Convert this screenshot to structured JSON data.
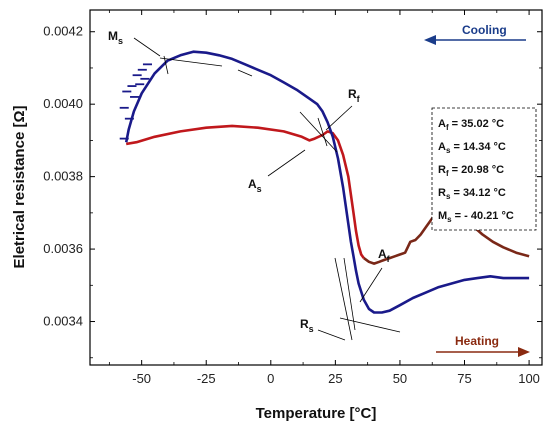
{
  "chart_data": {
    "type": "line",
    "xlabel": "Temperature [°C]",
    "ylabel": "Eletrical resistance [Ω]",
    "xlim": [
      -70,
      105
    ],
    "ylim": [
      0.00328,
      0.00426
    ],
    "xticks": [
      -50,
      -25,
      0,
      25,
      50,
      75,
      100
    ],
    "xtick_labels": [
      "-50",
      "-25",
      "0",
      "25",
      "50",
      "75",
      "100"
    ],
    "yticks": [
      0.0034,
      0.0036,
      0.0038,
      0.004,
      0.0042
    ],
    "ytick_labels": [
      "0.0034",
      "0.0036",
      "0.0038",
      "0.0040",
      "0.0042"
    ],
    "series": [
      {
        "color": "#c0181c",
        "points": [
          [
            -56,
            0.00389
          ],
          [
            -52,
            0.003895
          ],
          [
            -45,
            0.00391
          ],
          [
            -35,
            0.003925
          ],
          [
            -25,
            0.003935
          ],
          [
            -15,
            0.00394
          ],
          [
            -5,
            0.003935
          ],
          [
            5,
            0.003925
          ],
          [
            12,
            0.00391
          ],
          [
            15,
            0.0039
          ],
          [
            17,
            0.003905
          ],
          [
            20,
            0.003915
          ],
          [
            22,
            0.003925
          ],
          [
            24,
            0.00392
          ],
          [
            26,
            0.0039
          ],
          [
            28,
            0.00386
          ],
          [
            30,
            0.0038
          ],
          [
            31,
            0.00375
          ],
          [
            32,
            0.0037
          ],
          [
            33,
            0.00365
          ],
          [
            34,
            0.00361
          ],
          [
            35,
            0.003585
          ],
          [
            36,
            0.003575
          ]
        ]
      },
      {
        "color": "#7a2818",
        "points": [
          [
            36,
            0.003575
          ],
          [
            38,
            0.003565
          ],
          [
            40,
            0.00356
          ],
          [
            42,
            0.003565
          ],
          [
            44,
            0.00357
          ],
          [
            46,
            0.003575
          ],
          [
            48,
            0.00358
          ],
          [
            50,
            0.003585
          ],
          [
            52,
            0.00359
          ],
          [
            53,
            0.003605
          ],
          [
            54,
            0.00362
          ],
          [
            56,
            0.003625
          ],
          [
            58,
            0.00364
          ],
          [
            60,
            0.00366
          ],
          [
            62,
            0.00368
          ],
          [
            64,
            0.0037
          ],
          [
            66,
            0.00371
          ],
          [
            68,
            0.003715
          ],
          [
            70,
            0.00371
          ],
          [
            72,
            0.0037
          ],
          [
            75,
            0.003685
          ],
          [
            78,
            0.003665
          ],
          [
            82,
            0.00364
          ],
          [
            86,
            0.00362
          ],
          [
            90,
            0.003605
          ],
          [
            95,
            0.00359
          ],
          [
            100,
            0.00358
          ]
        ]
      },
      {
        "color": "#1a1a8a",
        "points": [
          [
            -56,
            0.003895
          ],
          [
            -55,
            0.00393
          ],
          [
            -53,
            0.00398
          ],
          [
            -50,
            0.00403
          ],
          [
            -45,
            0.004085
          ],
          [
            -40,
            0.00412
          ],
          [
            -35,
            0.004135
          ],
          [
            -30,
            0.004145
          ],
          [
            -25,
            0.004142
          ],
          [
            -20,
            0.004135
          ],
          [
            -15,
            0.004125
          ],
          [
            -10,
            0.00411
          ],
          [
            -5,
            0.004095
          ],
          [
            0,
            0.00408
          ],
          [
            5,
            0.00406
          ],
          [
            10,
            0.00404
          ],
          [
            15,
            0.004015
          ],
          [
            18,
            0.004
          ],
          [
            20,
            0.00398
          ],
          [
            22,
            0.00395
          ],
          [
            24,
            0.00391
          ],
          [
            26,
            0.00385
          ],
          [
            28,
            0.00377
          ],
          [
            29,
            0.00372
          ],
          [
            30,
            0.00367
          ],
          [
            31,
            0.00362
          ],
          [
            32,
            0.00358
          ],
          [
            33,
            0.00354
          ],
          [
            34,
            0.003505
          ],
          [
            36,
            0.00346
          ],
          [
            38,
            0.003435
          ],
          [
            40,
            0.003425
          ],
          [
            43,
            0.003425
          ],
          [
            46,
            0.00343
          ],
          [
            50,
            0.003445
          ],
          [
            55,
            0.003465
          ],
          [
            60,
            0.00348
          ],
          [
            65,
            0.003495
          ],
          [
            70,
            0.003505
          ],
          [
            75,
            0.003515
          ],
          [
            80,
            0.00352
          ],
          [
            85,
            0.003525
          ],
          [
            90,
            0.00352
          ],
          [
            95,
            0.00352
          ],
          [
            100,
            0.00352
          ]
        ]
      }
    ],
    "annotations": {
      "Ms": {
        "label": "M",
        "sub": "s"
      },
      "Rf": {
        "label": "R",
        "sub": "f"
      },
      "As": {
        "label": "A",
        "sub": "s"
      },
      "Af": {
        "label": "A",
        "sub": "f"
      },
      "Rs": {
        "label": "R",
        "sub": "s"
      }
    },
    "cooling_label": "Cooling",
    "heating_label": "Heating",
    "cooling_color": "#1a3c8a",
    "heating_color": "#8a2a10",
    "info_box": [
      {
        "label": "A",
        "sub": "f",
        "value": " = 35.02 °C"
      },
      {
        "label": "A",
        "sub": "s",
        "value": " = 14.34 °C"
      },
      {
        "label": "R",
        "sub": "f",
        "value": " = 20.98 °C"
      },
      {
        "label": "R",
        "sub": "s",
        "value": " = 34.12 °C"
      },
      {
        "label": "M",
        "sub": "s",
        "value": " = - 40.21 °C"
      }
    ]
  }
}
